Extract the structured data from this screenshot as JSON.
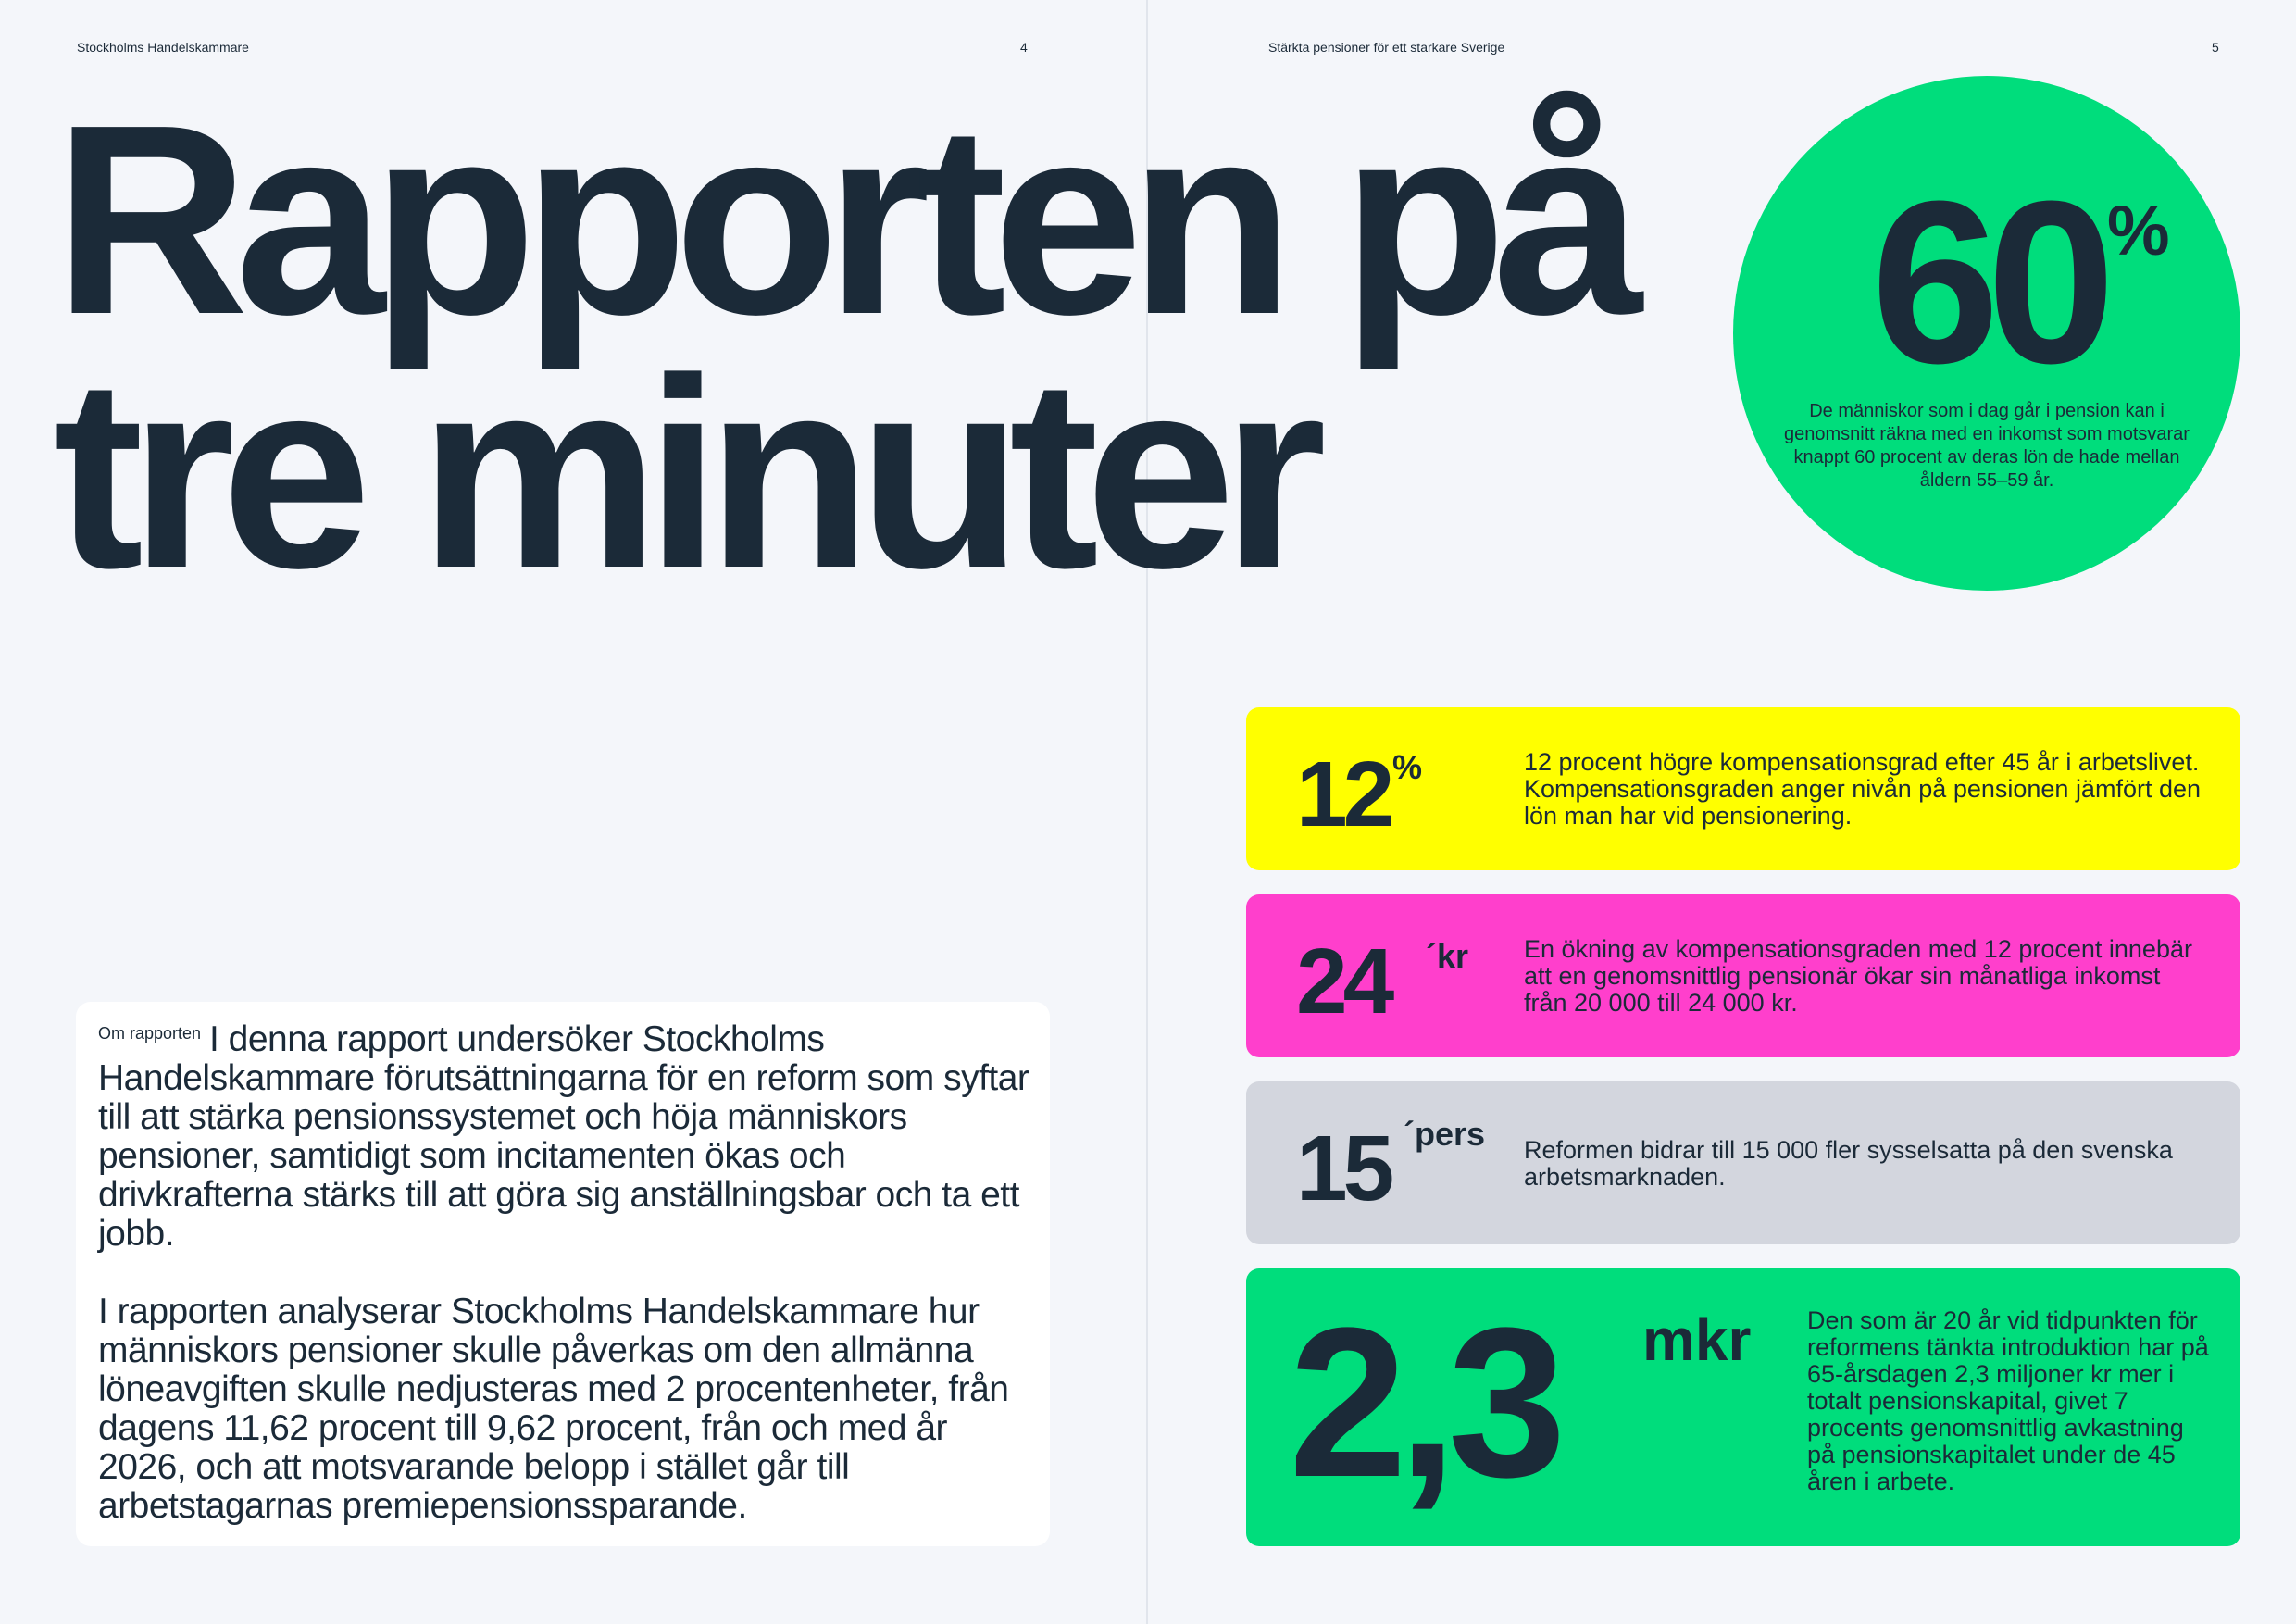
{
  "header": {
    "left_title": "Stockholms Handelskammare",
    "left_page": "4",
    "right_title": "Stärkta pensioner för ett starkare Sverige",
    "right_page": "5"
  },
  "headline": {
    "line1": "Rapporten på",
    "line2": "tre minuter"
  },
  "circle_stat": {
    "value": "60",
    "unit": "%",
    "description": "De människor som i dag går i pension kan i genomsnitt räkna med en inkomst som motsvarar knappt 60 procent av deras lön de hade mellan åldern 55–59 år."
  },
  "stats": [
    {
      "value": "12",
      "unit": "%",
      "description": "12 procent högre kompensationsgrad efter 45 år i arbetslivet. Kompensationsgraden anger nivån på pensionen jämfört den lön man har vid pensionering."
    },
    {
      "value": "24",
      "unit": "´kr",
      "description": "En ökning av kompensationsgraden med 12 procent innebär att en genomsnittlig pensionär ökar sin månatliga inkomst från 20 000 till 24 000 kr."
    },
    {
      "value": "15",
      "unit": "´pers",
      "description": "Reformen bidrar till 15 000 fler sysselsatta på den svenska arbetsmarknaden."
    },
    {
      "value": "2,3",
      "unit": "mkr",
      "description": "Den som är 20 år vid tidpunkten för reformens tänkta introduktion har på 65-årsdagen 2,3 miljoner kr mer i totalt pensionskapital, givet 7 procents genomsnittlig avkastning på pensionskapitalet under de 45 åren i arbete."
    }
  ],
  "about": {
    "label": "Om rapporten",
    "paragraph1": "I denna rapport undersöker Stockholms Handelskammare förutsättningarna för en reform som syftar till att stärka pensionssystemet och höja människors pensioner, samtidigt som incitamenten ökas och drivkrafterna stärks till att göra sig anställningsbar och ta ett jobb.",
    "paragraph2": "I rapporten analyserar Stockholms Handelskammare hur människors pensioner skulle påverkas om den allmänna löneavgiften skulle nedjusteras med 2 procentenheter, från dagens 11,62 procent till 9,62 procent, från och med år 2026, och att motsvarande belopp i stället går till arbetstagarnas premiepensionssparande."
  },
  "colors": {
    "background": "#f4f6fa",
    "text": "#1b2a38",
    "green": "#00dd7c",
    "yellow": "#ffff00",
    "magenta": "#ff3fcc",
    "grey": "#d3d6de"
  }
}
